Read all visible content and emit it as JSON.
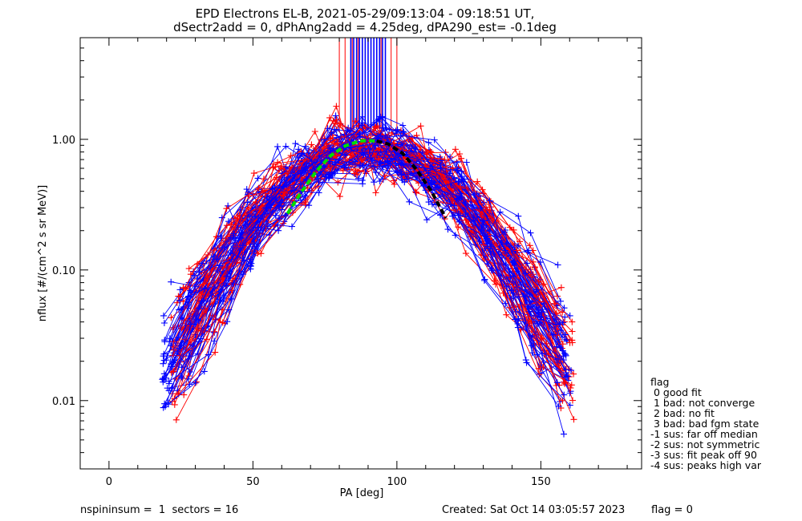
{
  "title_line1": "EPD Electrons EL-B, 2021-05-29/09:13:04 - 09:18:51 UT,",
  "title_line2": "dSectr2add = 0, dPhAng2add = 4.25deg, dPA290_est=  -0.1deg",
  "xlabel": "PA [deg]",
  "ylabel": "nflux [#/(cm^2 s sr MeV)]",
  "xticks": [
    "0",
    "50",
    "100",
    "150"
  ],
  "yticks": [
    "0.01",
    "0.10",
    "1.00"
  ],
  "legend": {
    "title": "flag",
    "items": [
      " 0 good fit",
      " 1 bad: not converge",
      " 2 bad: no fit",
      " 3 bad: bad fgm state",
      "-1 sus: far off median",
      "-2 sus: not symmetric",
      "-3 sus: fit peak off 90",
      "-4 sus: peaks high var"
    ]
  },
  "footer": {
    "left": "nspininsum =  1  sectors = 16",
    "created": "Created: Sat Oct 14 03:05:57 2023",
    "flag": "flag = 0"
  },
  "colors": {
    "series_a": "#ff0000",
    "series_b": "#0000ff",
    "fit_green": "#00dd00",
    "fit_black": "#000000"
  },
  "chart_data": {
    "type": "line",
    "xlim": [
      -10,
      185
    ],
    "ylim": [
      0.003,
      6.0
    ],
    "yscale": "log",
    "grid": false,
    "series": [
      {
        "color": "red",
        "shape": "gaussian",
        "peak_x": 90,
        "peak_y": 0.95,
        "width_deg": 24,
        "pa_range": [
          25,
          158
        ],
        "marker": "+"
      },
      {
        "color": "blue",
        "shape": "gaussian",
        "peak_x": 90,
        "peak_y": 0.95,
        "width_deg": 24,
        "pa_range": [
          22,
          157
        ],
        "marker": "+"
      }
    ],
    "fit_lines": [
      {
        "color": "green",
        "style": "dashed",
        "x": [
          62,
          67,
          72,
          77,
          82,
          87,
          90,
          93
        ],
        "y": [
          0.27,
          0.4,
          0.57,
          0.75,
          0.89,
          0.97,
          0.98,
          0.97
        ]
      },
      {
        "color": "black",
        "style": "dashed",
        "x": [
          93,
          97,
          102,
          107,
          112,
          117
        ],
        "y": [
          0.97,
          0.92,
          0.78,
          0.58,
          0.4,
          0.25
        ]
      }
    ],
    "vertical_marks": {
      "ymin": 1.2,
      "ymax": 6.0,
      "red_x": [
        80,
        82,
        84.5,
        86.5,
        88,
        94.5,
        96,
        98,
        100
      ],
      "blue_x": [
        84,
        85,
        86,
        87,
        88,
        89,
        90,
        91,
        92,
        93,
        94,
        95,
        96
      ]
    }
  }
}
